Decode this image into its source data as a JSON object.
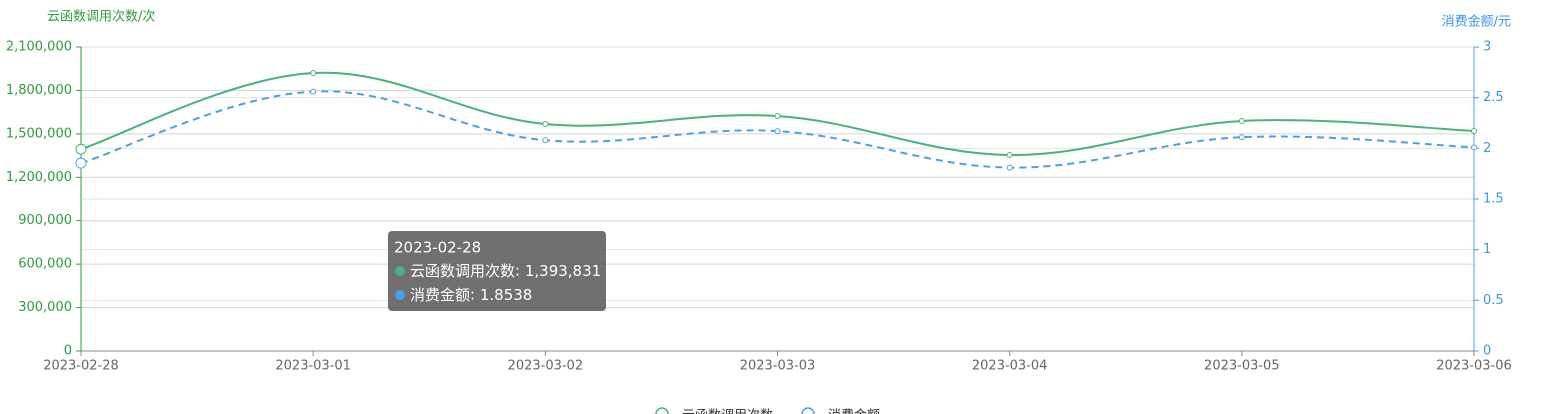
{
  "chart_data": {
    "type": "line",
    "y_title": "云函数调用次数/次",
    "y2_title": "消费金额/元",
    "categories": [
      "2023-02-28",
      "2023-03-01",
      "2023-03-02",
      "2023-03-03",
      "2023-03-04",
      "2023-03-05",
      "2023-03-06"
    ],
    "series": [
      {
        "name": "云函数调用次数",
        "color": "#48b37c",
        "axis": "y",
        "dashed": false,
        "values": [
          1393831,
          1920000,
          1568000,
          1623000,
          1354000,
          1589000,
          1520000
        ],
        "value_labels": [
          "1,393,831",
          null,
          null,
          null,
          null,
          null,
          null
        ]
      },
      {
        "name": "消费金额",
        "color": "#4c9ff0",
        "axis": "y2",
        "dashed": true,
        "values": [
          1.8538,
          2.56,
          2.08,
          2.17,
          1.81,
          2.11,
          2.01
        ]
      }
    ],
    "ylim": [
      0,
      2100000
    ],
    "yticks": [
      0,
      {
        "value": 300000,
        "label": "300,000"
      },
      {
        "value": 600000,
        "label": "600,000"
      },
      {
        "value": 900000,
        "label": "900,000"
      },
      {
        "value": 1200000,
        "label": "1,200,000"
      },
      {
        "value": 1500000,
        "label": "1,500,000"
      },
      {
        "value": 1800000,
        "label": "1,800,000"
      },
      {
        "value": 2100000,
        "label": "2,100,000"
      }
    ],
    "y2lim": [
      0,
      3
    ],
    "y2ticks": [
      0,
      0.5,
      1,
      1.5,
      2,
      2.5,
      3
    ],
    "grid": true,
    "legend": "bottom",
    "tooltip_index": 0
  }
}
